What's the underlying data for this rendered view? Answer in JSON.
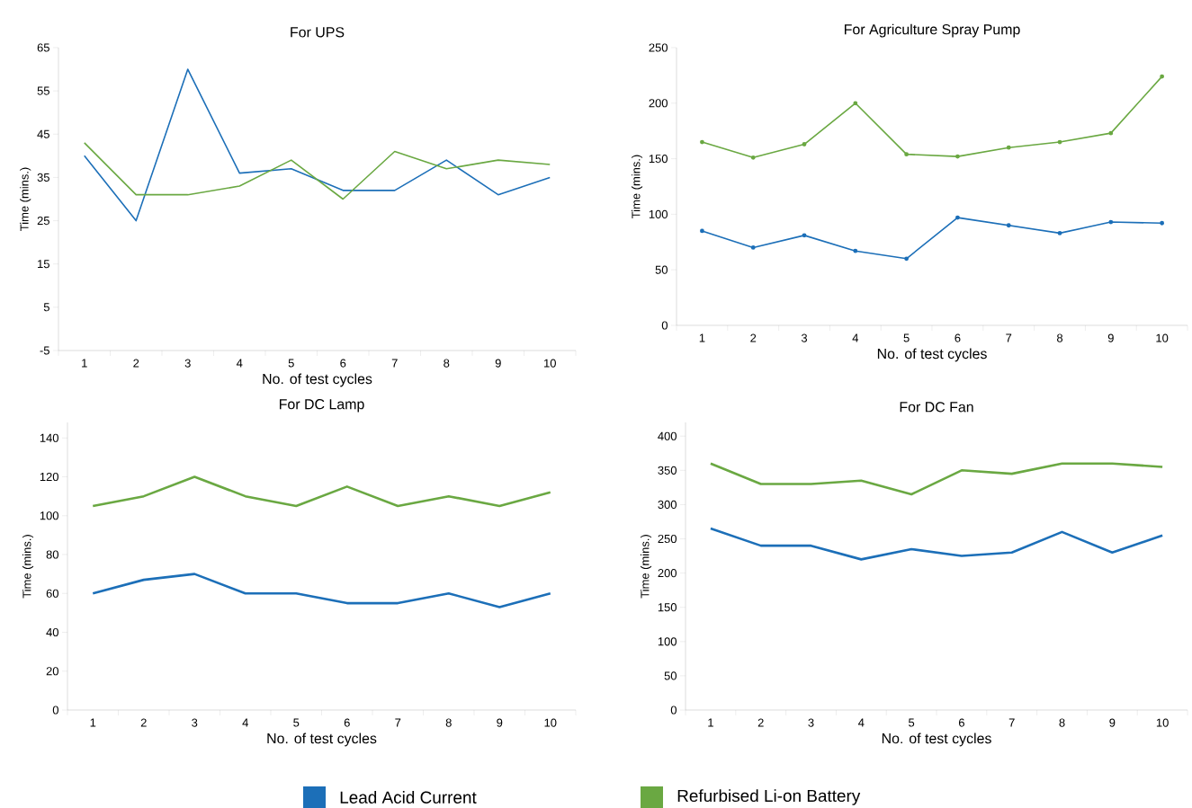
{
  "chart_data": [
    {
      "type": "line",
      "title": "For UPS",
      "xlabel": "No. of test cycles",
      "ylabel": "Time (mins.)",
      "categories": [
        "1",
        "2",
        "3",
        "4",
        "5",
        "6",
        "7",
        "8",
        "9",
        "10"
      ],
      "ylim": [
        -5,
        65
      ],
      "yticks": [
        -5,
        5,
        15,
        25,
        35,
        45,
        55,
        65
      ],
      "legend": "bottom",
      "series": [
        {
          "name": "Lead Acid Current",
          "color": "#1c6fb8",
          "values": [
            40,
            25,
            60,
            36,
            37,
            32,
            32,
            39,
            31,
            35
          ]
        },
        {
          "name": "Refurbised Li-on Battery",
          "color": "#6aa842",
          "values": [
            43,
            31,
            31,
            33,
            39,
            30,
            41,
            37,
            39,
            38
          ]
        }
      ]
    },
    {
      "type": "line",
      "title": "For Agriculture Spray Pump",
      "xlabel": "No. of test cycles",
      "ylabel": "Time (mins.)",
      "categories": [
        "1",
        "2",
        "3",
        "4",
        "5",
        "6",
        "7",
        "8",
        "9",
        "10"
      ],
      "ylim": [
        0,
        250
      ],
      "yticks": [
        0,
        50,
        100,
        150,
        200,
        250
      ],
      "marker": "circle",
      "series": [
        {
          "color": "#1c6fb8",
          "values": [
            85,
            70,
            81,
            67,
            60,
            97,
            90,
            83,
            93,
            92
          ]
        },
        {
          "color": "#6aa842",
          "values": [
            165,
            151,
            163,
            200,
            154,
            152,
            160,
            165,
            173,
            224
          ]
        }
      ]
    },
    {
      "type": "line",
      "title": "For DC Lamp",
      "xlabel": "No. of test cycles",
      "ylabel": "Time (mins.)",
      "categories": [
        "1",
        "2",
        "3",
        "4",
        "5",
        "6",
        "7",
        "8",
        "9",
        "10"
      ],
      "ylim": [
        0,
        148
      ],
      "yticks": [
        0,
        20,
        40,
        60,
        80,
        100,
        120,
        140
      ],
      "series": [
        {
          "color": "#1c6fb8",
          "values": [
            60,
            67,
            70,
            60,
            60,
            55,
            55,
            60,
            53,
            60
          ]
        },
        {
          "color": "#6aa842",
          "values": [
            105,
            110,
            120,
            110,
            105,
            115,
            105,
            110,
            105,
            112
          ]
        }
      ]
    },
    {
      "type": "line",
      "title": "For DC Fan",
      "xlabel": "No. of test cycles",
      "ylabel": "Time (mins.)",
      "categories": [
        "1",
        "2",
        "3",
        "4",
        "5",
        "6",
        "7",
        "8",
        "9",
        "10"
      ],
      "ylim": [
        0,
        420
      ],
      "yticks": [
        0,
        50,
        100,
        150,
        200,
        250,
        300,
        350,
        400
      ],
      "series": [
        {
          "color": "#1c6fb8",
          "values": [
            265,
            240,
            240,
            220,
            235,
            225,
            230,
            260,
            230,
            255
          ]
        },
        {
          "color": "#6aa842",
          "values": [
            360,
            330,
            330,
            335,
            315,
            350,
            345,
            360,
            360,
            355
          ]
        }
      ]
    }
  ]
}
